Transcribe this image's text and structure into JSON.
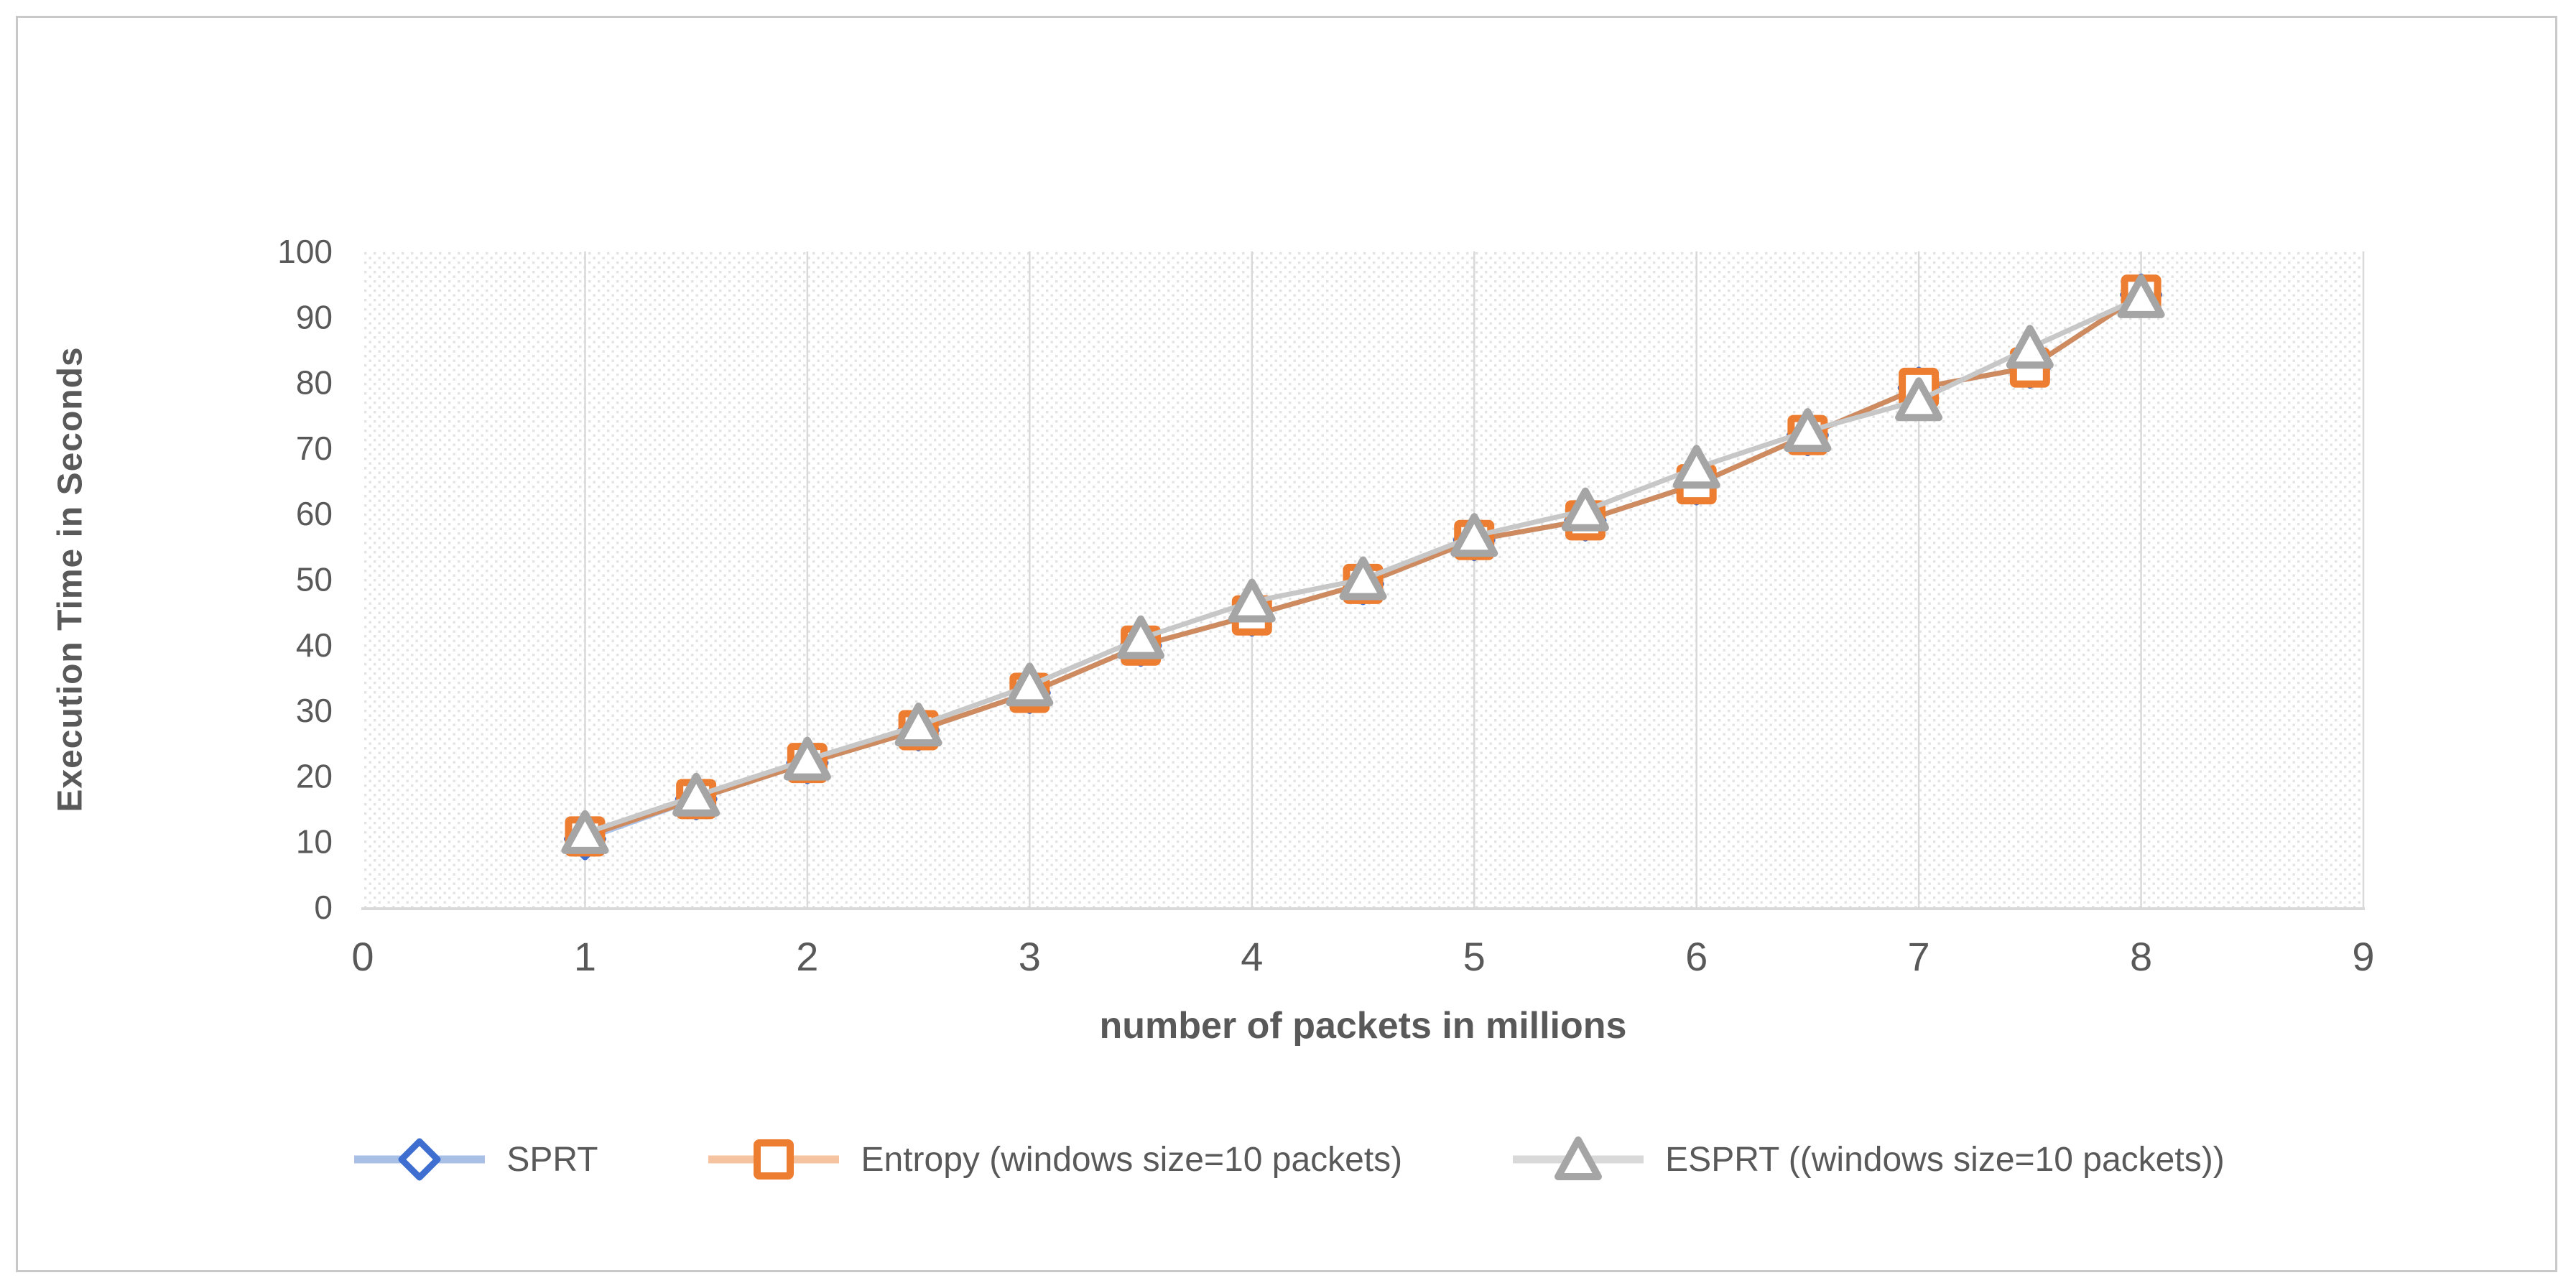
{
  "figure": {
    "background": "#FFFFFF",
    "border_color": "#C9C9C9",
    "text_color": "#595959",
    "gridline_color": "#D9D9D9",
    "hatch_dot_color": "#E3E3E3"
  },
  "chart_data": {
    "type": "line",
    "title": "",
    "xlabel": "number of packets in millions",
    "ylabel": "Execution Time in Seconds",
    "xlim": [
      0,
      9
    ],
    "ylim": [
      0,
      100
    ],
    "x_ticks": [
      0,
      1,
      2,
      3,
      4,
      5,
      6,
      7,
      8,
      9
    ],
    "y_ticks": [
      0,
      10,
      20,
      30,
      40,
      50,
      60,
      70,
      80,
      90,
      100
    ],
    "grid": "vertical-only",
    "legend_position": "bottom",
    "plot_background": "diagonal-hatch",
    "x": [
      1,
      1.5,
      2,
      2.5,
      3,
      3.5,
      4,
      4.5,
      5,
      5.5,
      6,
      6.5,
      7,
      7.5,
      8
    ],
    "series": [
      {
        "name": "SPRT",
        "marker": "diamond",
        "marker_color": "#3E6FD0",
        "line_color": "#A9C0E6",
        "legend_line_color": "#A9C0E6",
        "values": [
          10.4,
          16.5,
          22,
          27,
          32.7,
          39.9,
          44.5,
          49.3,
          56,
          59,
          64.5,
          72,
          79.2,
          82.3,
          93.4
        ]
      },
      {
        "name": "Entropy (windows size=10 packets)",
        "marker": "square",
        "marker_color": "#ED7D31",
        "line_color": "#CE8B60",
        "legend_line_color": "#F5C3A0",
        "values": [
          10.8,
          16.5,
          22,
          27,
          32.7,
          39.9,
          44.5,
          49.3,
          56,
          59,
          64.5,
          72,
          79.2,
          82.3,
          93.4
        ]
      },
      {
        "name": "ESPRT ((windows size=10 packets))",
        "marker": "triangle",
        "marker_color": "#A5A5A5",
        "line_color": "#C7C7C7",
        "legend_line_color": "#D9D9D9",
        "values": [
          11.3,
          17,
          22.5,
          27.7,
          33.8,
          41,
          46.6,
          50,
          56.6,
          60.5,
          67,
          72.6,
          77.3,
          85.3,
          93
        ]
      }
    ]
  }
}
